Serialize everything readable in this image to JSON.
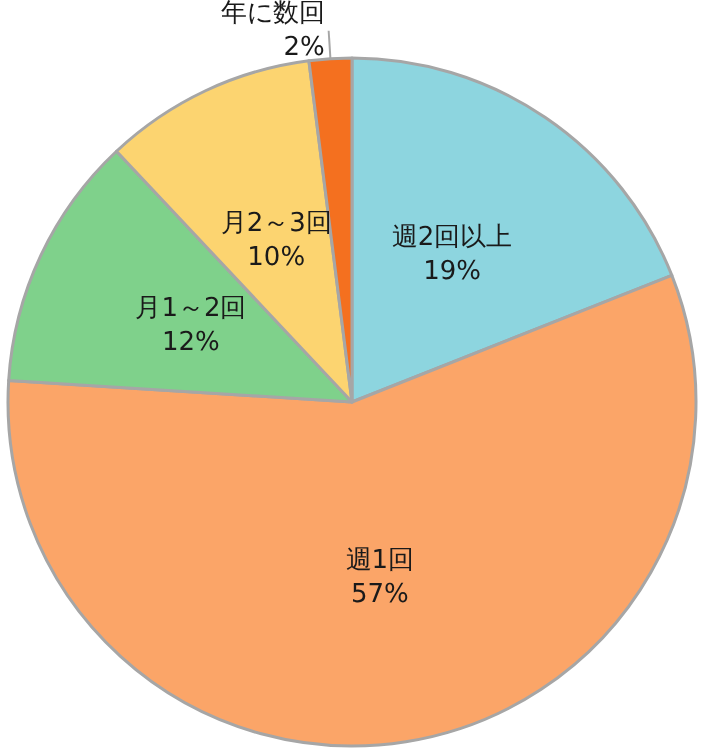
{
  "chart_data": {
    "type": "pie",
    "categories": [
      "週2回以上",
      "週1回",
      "月1～2回",
      "月2～3回",
      "年に数回"
    ],
    "values": [
      19,
      57,
      12,
      10,
      2
    ],
    "value_labels": [
      "19%",
      "57%",
      "12%",
      "10%",
      "2%"
    ],
    "colors": [
      "#8dd5df",
      "#fba568",
      "#7fd18b",
      "#fcd470",
      "#f4701f"
    ],
    "legend": false
  }
}
